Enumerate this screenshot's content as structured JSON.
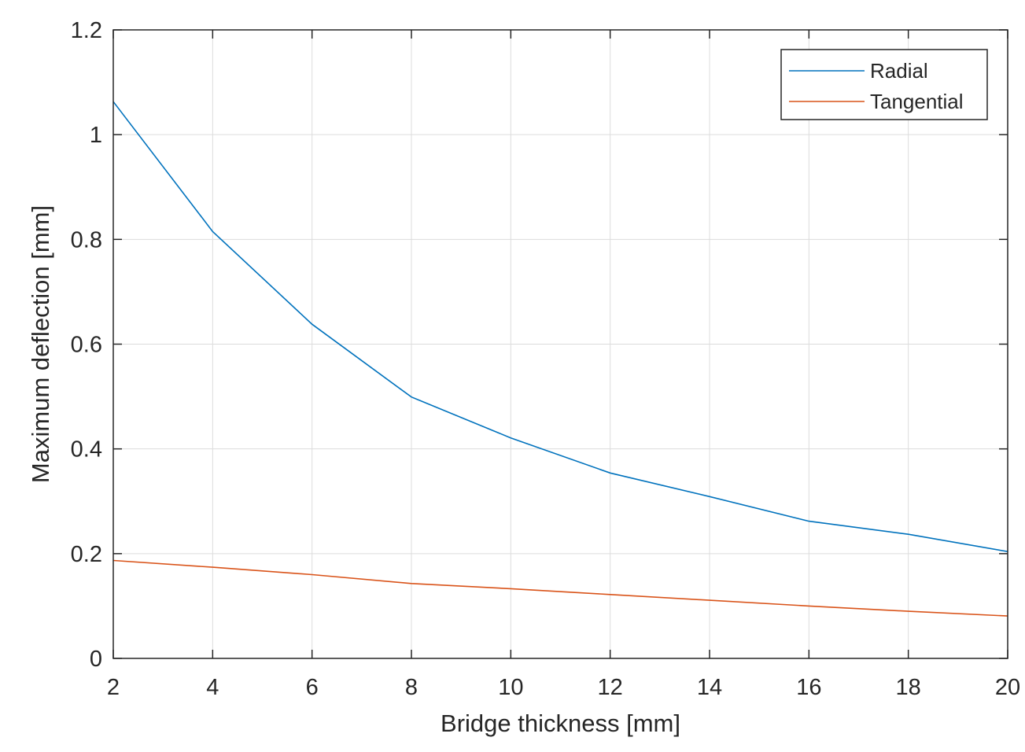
{
  "chart_data": {
    "type": "line",
    "xlabel": "Bridge thickness [mm]",
    "ylabel": "Maximum deflection [mm]",
    "xlim": [
      2,
      20
    ],
    "ylim": [
      0,
      1.2
    ],
    "xticks": [
      "2",
      "4",
      "6",
      "8",
      "10",
      "12",
      "14",
      "16",
      "18",
      "20"
    ],
    "yticks": [
      "0",
      "0.2",
      "0.4",
      "0.6",
      "0.8",
      "1",
      "1.2"
    ],
    "grid": true,
    "legend_position": "top-right",
    "x": [
      2,
      4,
      6,
      8,
      10,
      12,
      14,
      16,
      18,
      20
    ],
    "series": [
      {
        "name": "Radial",
        "color": "#0072BD",
        "values": [
          1.063,
          0.815,
          0.638,
          0.499,
          0.421,
          0.354,
          0.309,
          0.262,
          0.237,
          0.204
        ]
      },
      {
        "name": "Tangential",
        "color": "#D95319",
        "values": [
          0.187,
          0.174,
          0.16,
          0.143,
          0.133,
          0.122,
          0.111,
          0.1,
          0.09,
          0.081
        ]
      }
    ]
  }
}
